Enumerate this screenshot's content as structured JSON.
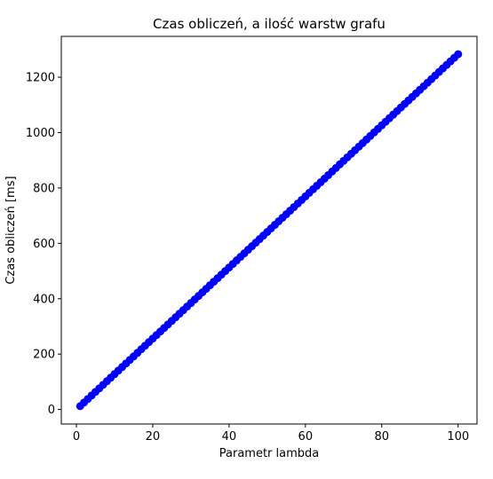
{
  "chart_data": {
    "type": "line",
    "title": "Czas obliczeń, a ilość warstw grafu",
    "xlabel": "Parametr lambda",
    "ylabel": "Czas obliczeń [ms]",
    "xlim": [
      -3.95,
      104.95
    ],
    "ylim": [
      -52.5,
      1347.5
    ],
    "xticks": [
      0,
      20,
      40,
      60,
      80,
      100
    ],
    "yticks": [
      0,
      200,
      400,
      600,
      800,
      1000,
      1200
    ],
    "grid": false,
    "legend": "none",
    "series": [
      {
        "color": "#0000ff",
        "marker": "circle",
        "x_start": 1,
        "x_end": 100,
        "x_step": 1,
        "y_start": 12,
        "y_end": 1283
      }
    ]
  }
}
